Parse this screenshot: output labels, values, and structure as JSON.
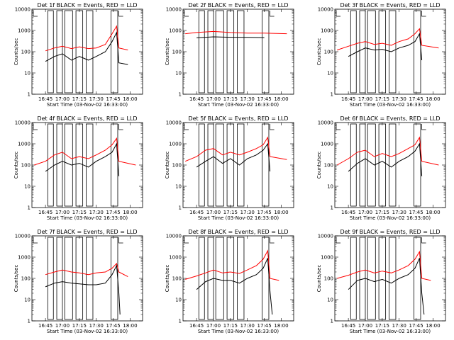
{
  "chart_data": [
    {
      "type": "line",
      "title": "Det 1f BLACK = Events, RED = LLD",
      "xlabel": "Start Time (03-Nov-02 16:33:00)",
      "ylabel": "Counts/sec",
      "yscale": "log",
      "ylim": [
        1,
        10000
      ],
      "xticklabels": [
        "16:45",
        "17:00",
        "17:15",
        "17:30",
        "17:45",
        "18:00"
      ],
      "yticklabels": [
        "1",
        "10",
        "100",
        "1000",
        "10000"
      ],
      "series": [
        {
          "color": "#ff0000",
          "x": [
            "16:45",
            "16:53",
            "17:00",
            "17:08",
            "17:15",
            "17:23",
            "17:30",
            "17:38",
            "17:44",
            "17:48",
            "17:50",
            "17:58"
          ],
          "values": [
            110,
            150,
            180,
            140,
            170,
            140,
            150,
            220,
            700,
            1600,
            150,
            120
          ]
        },
        {
          "color": "#000000",
          "x": [
            "16:45",
            "16:53",
            "17:00",
            "17:08",
            "17:15",
            "17:23",
            "17:30",
            "17:38",
            "17:44",
            "17:48",
            "17:50",
            "17:58"
          ],
          "values": [
            35,
            60,
            80,
            40,
            60,
            40,
            60,
            100,
            300,
            800,
            30,
            25
          ]
        }
      ]
    },
    {
      "type": "line",
      "title": "Det 2f BLACK = Events, RED = LLD",
      "xlabel": "Start Time (03-Nov-02 16:33:00)",
      "ylabel": "Counts/sec",
      "yscale": "log",
      "ylim": [
        1,
        10000
      ],
      "xticklabels": [
        "16:45",
        "17:00",
        "17:15",
        "17:30",
        "17:45",
        "18:00"
      ],
      "yticklabels": [
        "1",
        "10",
        "100",
        "1000",
        "10000"
      ],
      "series": [
        {
          "color": "#ff0000",
          "x": [
            "16:35",
            "16:45",
            "17:00",
            "17:15",
            "17:30",
            "17:45",
            "18:05"
          ],
          "values": [
            700,
            800,
            900,
            800,
            750,
            750,
            700
          ]
        },
        {
          "color": "#000000",
          "x": [
            "16:45",
            "17:00",
            "17:15",
            "17:30",
            "17:45"
          ],
          "values": [
            450,
            500,
            480,
            470,
            460
          ]
        }
      ]
    },
    {
      "type": "line",
      "title": "Det 3f BLACK = Events, RED = LLD",
      "xlabel": "Start Time (03-Nov-02 16:33:00)",
      "ylabel": "Counts/sec",
      "yscale": "log",
      "ylim": [
        1,
        10000
      ],
      "xticklabels": [
        "16:45",
        "17:00",
        "17:15",
        "17:30",
        "17:45",
        "18:00"
      ],
      "yticklabels": [
        "1",
        "10",
        "100",
        "1000",
        "10000"
      ],
      "series": [
        {
          "color": "#ff0000",
          "x": [
            "16:35",
            "16:45",
            "16:53",
            "17:00",
            "17:08",
            "17:15",
            "17:23",
            "17:30",
            "17:38",
            "17:44",
            "17:48",
            "17:50",
            "18:05"
          ],
          "values": [
            120,
            180,
            250,
            300,
            220,
            250,
            200,
            300,
            400,
            700,
            1200,
            200,
            150
          ]
        },
        {
          "color": "#000000",
          "x": [
            "16:45",
            "16:53",
            "17:00",
            "17:08",
            "17:15",
            "17:23",
            "17:30",
            "17:38",
            "17:44",
            "17:48",
            "17:50"
          ],
          "values": [
            60,
            100,
            150,
            120,
            130,
            100,
            150,
            200,
            300,
            700,
            40
          ]
        }
      ]
    },
    {
      "type": "line",
      "title": "Det 4f BLACK = Events, RED = LLD",
      "xlabel": "Start Time (03-Nov-02 16:33:00)",
      "ylabel": "Counts/sec",
      "yscale": "log",
      "ylim": [
        1,
        10000
      ],
      "xticklabels": [
        "16:45",
        "17:00",
        "17:15",
        "17:30",
        "17:45",
        "18:00"
      ],
      "yticklabels": [
        "1",
        "10",
        "100",
        "1000",
        "10000"
      ],
      "series": [
        {
          "color": "#ff0000",
          "x": [
            "16:35",
            "16:45",
            "16:53",
            "17:00",
            "17:08",
            "17:15",
            "17:23",
            "17:30",
            "17:38",
            "17:44",
            "17:48",
            "17:50",
            "18:05"
          ],
          "values": [
            100,
            150,
            300,
            400,
            200,
            250,
            200,
            300,
            500,
            900,
            1800,
            150,
            100
          ]
        },
        {
          "color": "#000000",
          "x": [
            "16:45",
            "16:53",
            "17:00",
            "17:08",
            "17:15",
            "17:23",
            "17:30",
            "17:38",
            "17:44",
            "17:48",
            "17:50"
          ],
          "values": [
            50,
            100,
            150,
            100,
            120,
            80,
            150,
            250,
            400,
            1000,
            30
          ]
        }
      ]
    },
    {
      "type": "line",
      "title": "Det 5f BLACK = Events, RED = LLD",
      "xlabel": "Start Time (03-Nov-02 16:33:00)",
      "ylabel": "Counts/sec",
      "yscale": "log",
      "ylim": [
        1,
        10000
      ],
      "xticklabels": [
        "16:45",
        "17:00",
        "17:15",
        "17:30",
        "17:45",
        "18:00"
      ],
      "yticklabels": [
        "1",
        "10",
        "100",
        "1000",
        "10000"
      ],
      "series": [
        {
          "color": "#ff0000",
          "x": [
            "16:35",
            "16:45",
            "16:53",
            "17:00",
            "17:08",
            "17:15",
            "17:23",
            "17:30",
            "17:38",
            "17:44",
            "17:48",
            "17:50",
            "18:05"
          ],
          "values": [
            150,
            250,
            500,
            600,
            300,
            400,
            300,
            400,
            600,
            900,
            2000,
            250,
            180
          ]
        },
        {
          "color": "#000000",
          "x": [
            "16:45",
            "16:53",
            "17:00",
            "17:08",
            "17:15",
            "17:23",
            "17:30",
            "17:38",
            "17:44",
            "17:48",
            "17:50"
          ],
          "values": [
            80,
            150,
            250,
            120,
            200,
            100,
            200,
            300,
            500,
            1000,
            50
          ]
        }
      ]
    },
    {
      "type": "line",
      "title": "Det 6f BLACK = Events, RED = LLD",
      "xlabel": "Start Time (03-Nov-02 16:33:00)",
      "ylabel": "Counts/sec",
      "yscale": "log",
      "ylim": [
        1,
        10000
      ],
      "xticklabels": [
        "16:45",
        "17:00",
        "17:15",
        "17:30",
        "17:45",
        "18:00"
      ],
      "yticklabels": [
        "1",
        "10",
        "100",
        "1000",
        "10000"
      ],
      "series": [
        {
          "color": "#ff0000",
          "x": [
            "16:35",
            "16:45",
            "16:53",
            "17:00",
            "17:08",
            "17:15",
            "17:23",
            "17:30",
            "17:38",
            "17:44",
            "17:48",
            "17:50",
            "18:05"
          ],
          "values": [
            100,
            200,
            400,
            500,
            250,
            350,
            250,
            350,
            600,
            900,
            2000,
            150,
            100
          ]
        },
        {
          "color": "#000000",
          "x": [
            "16:45",
            "16:53",
            "17:00",
            "17:08",
            "17:15",
            "17:23",
            "17:30",
            "17:38",
            "17:44",
            "17:48",
            "17:50"
          ],
          "values": [
            50,
            120,
            200,
            100,
            150,
            80,
            150,
            250,
            450,
            1000,
            30
          ]
        }
      ]
    },
    {
      "type": "line",
      "title": "Det 7f BLACK = Events, RED = LLD",
      "xlabel": "Start Time (03-Nov-02 16:33:00)",
      "ylabel": "Counts/sec",
      "yscale": "log",
      "ylim": [
        1,
        10000
      ],
      "xticklabels": [
        "16:45",
        "17:00",
        "17:15",
        "17:30",
        "17:45",
        "18:00"
      ],
      "yticklabels": [
        "1",
        "10",
        "100",
        "1000",
        "10000"
      ],
      "series": [
        {
          "color": "#ff0000",
          "x": [
            "16:45",
            "16:53",
            "17:00",
            "17:08",
            "17:15",
            "17:23",
            "17:30",
            "17:38",
            "17:44",
            "17:48",
            "17:50",
            "17:58"
          ],
          "values": [
            150,
            200,
            250,
            200,
            180,
            150,
            180,
            200,
            300,
            500,
            200,
            120
          ]
        },
        {
          "color": "#000000",
          "x": [
            "16:45",
            "16:53",
            "17:00",
            "17:08",
            "17:15",
            "17:23",
            "17:30",
            "17:38",
            "17:44",
            "17:48",
            "17:50",
            "17:51"
          ],
          "values": [
            40,
            60,
            70,
            60,
            55,
            50,
            50,
            60,
            150,
            400,
            20,
            2
          ]
        }
      ]
    },
    {
      "type": "line",
      "title": "Det 8f BLACK = Events, RED = LLD",
      "xlabel": "Start Time (03-Nov-02 16:33:00)",
      "ylabel": "Counts/sec",
      "yscale": "log",
      "ylim": [
        1,
        10000
      ],
      "xticklabels": [
        "16:45",
        "17:00",
        "17:15",
        "17:30",
        "17:45",
        "18:00"
      ],
      "yticklabels": [
        "1",
        "10",
        "100",
        "1000",
        "10000"
      ],
      "series": [
        {
          "color": "#ff0000",
          "x": [
            "16:35",
            "16:45",
            "16:53",
            "17:00",
            "17:08",
            "17:15",
            "17:23",
            "17:30",
            "17:38",
            "17:44",
            "17:48",
            "17:50",
            "17:58"
          ],
          "values": [
            90,
            130,
            180,
            250,
            180,
            200,
            170,
            250,
            400,
            800,
            2000,
            100,
            80
          ]
        },
        {
          "color": "#000000",
          "x": [
            "16:45",
            "16:53",
            "17:00",
            "17:08",
            "17:15",
            "17:23",
            "17:30",
            "17:38",
            "17:44",
            "17:48",
            "17:50",
            "17:52"
          ],
          "values": [
            30,
            70,
            100,
            80,
            80,
            60,
            100,
            150,
            300,
            900,
            25,
            2
          ]
        }
      ]
    },
    {
      "type": "line",
      "title": "Det 9f BLACK = Events, RED = LLD",
      "xlabel": "Start Time (03-Nov-02 16:33:00)",
      "ylabel": "Counts/sec",
      "yscale": "log",
      "ylim": [
        1,
        10000
      ],
      "xticklabels": [
        "16:45",
        "17:00",
        "17:15",
        "17:30",
        "17:45",
        "18:00"
      ],
      "yticklabels": [
        "1",
        "10",
        "100",
        "1000",
        "10000"
      ],
      "series": [
        {
          "color": "#ff0000",
          "x": [
            "16:35",
            "16:45",
            "16:53",
            "17:00",
            "17:08",
            "17:15",
            "17:23",
            "17:30",
            "17:38",
            "17:44",
            "17:48",
            "17:50",
            "17:58"
          ],
          "values": [
            100,
            140,
            200,
            250,
            180,
            220,
            180,
            250,
            400,
            800,
            1800,
            100,
            80
          ]
        },
        {
          "color": "#000000",
          "x": [
            "16:45",
            "16:53",
            "17:00",
            "17:08",
            "17:15",
            "17:23",
            "17:30",
            "17:38",
            "17:44",
            "17:48",
            "17:50",
            "17:52"
          ],
          "values": [
            30,
            80,
            100,
            70,
            90,
            60,
            100,
            150,
            300,
            900,
            20,
            2
          ]
        }
      ]
    }
  ]
}
